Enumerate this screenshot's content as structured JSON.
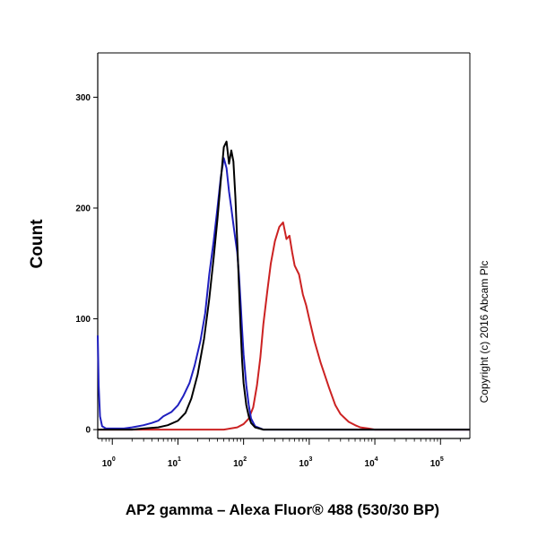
{
  "chart_data": {
    "type": "line",
    "title": "",
    "xlabel": "AP2 gamma – Alexa Fluor® 488 (530/30 BP)",
    "ylabel": "Count",
    "x_scale": "log",
    "xlim": [
      0.6,
      280000
    ],
    "ylim": [
      -8,
      340
    ],
    "x_ticks": [
      {
        "value": 1,
        "base": "10",
        "exp": "0"
      },
      {
        "value": 10,
        "base": "10",
        "exp": "1"
      },
      {
        "value": 100,
        "base": "10",
        "exp": "2"
      },
      {
        "value": 1000,
        "base": "10",
        "exp": "3"
      },
      {
        "value": 10000,
        "base": "10",
        "exp": "4"
      },
      {
        "value": 100000,
        "base": "10",
        "exp": "5"
      }
    ],
    "y_ticks": [
      {
        "value": 0,
        "label": "0"
      },
      {
        "value": 100,
        "label": "100"
      },
      {
        "value": 200,
        "label": "200"
      },
      {
        "value": 300,
        "label": "300"
      }
    ],
    "grid": false,
    "legend": "none",
    "annotation": "Copyright (c) 2016 Abcam Plc",
    "series": [
      {
        "color": "#1f1fbf",
        "x": [
          0.6,
          0.62,
          0.65,
          0.7,
          0.8,
          1,
          1.5,
          2,
          3,
          4,
          5,
          6,
          8,
          10,
          12,
          15,
          18,
          22,
          26,
          30,
          35,
          40,
          45,
          50,
          55,
          60,
          65,
          70,
          75,
          80,
          85,
          90,
          95,
          100,
          110,
          120,
          130,
          150,
          200,
          300,
          1000,
          280000
        ],
        "y": [
          85,
          40,
          12,
          3,
          1,
          1,
          1,
          2,
          4,
          6,
          8,
          12,
          16,
          22,
          30,
          42,
          58,
          80,
          105,
          140,
          170,
          200,
          228,
          245,
          236,
          215,
          200,
          185,
          172,
          160,
          140,
          115,
          90,
          68,
          40,
          22,
          10,
          3,
          0,
          0,
          0,
          0
        ]
      },
      {
        "color": "#000000",
        "x": [
          0.6,
          1,
          2,
          3,
          5,
          7,
          10,
          13,
          16,
          20,
          25,
          30,
          35,
          40,
          45,
          50,
          55,
          60,
          65,
          70,
          75,
          80,
          85,
          90,
          95,
          100,
          110,
          120,
          130,
          150,
          200,
          300,
          1000,
          280000
        ],
        "y": [
          0,
          0,
          0,
          1,
          2,
          4,
          8,
          15,
          28,
          50,
          82,
          118,
          155,
          190,
          225,
          255,
          260,
          240,
          252,
          242,
          210,
          170,
          130,
          92,
          62,
          42,
          22,
          12,
          6,
          2,
          0,
          0,
          0,
          0
        ]
      },
      {
        "color": "#cc2222",
        "x": [
          0.6,
          10,
          50,
          80,
          100,
          120,
          140,
          160,
          180,
          200,
          230,
          260,
          300,
          350,
          400,
          450,
          500,
          550,
          600,
          700,
          800,
          900,
          1000,
          1200,
          1500,
          2000,
          2500,
          3000,
          4000,
          5000,
          6000,
          8000,
          10000,
          15000,
          280000
        ],
        "y": [
          0,
          0,
          0,
          2,
          5,
          10,
          20,
          40,
          65,
          95,
          125,
          150,
          170,
          183,
          187,
          172,
          175,
          160,
          148,
          140,
          122,
          112,
          100,
          80,
          60,
          38,
          22,
          14,
          7,
          4,
          2,
          1,
          0,
          0,
          0
        ]
      }
    ]
  }
}
